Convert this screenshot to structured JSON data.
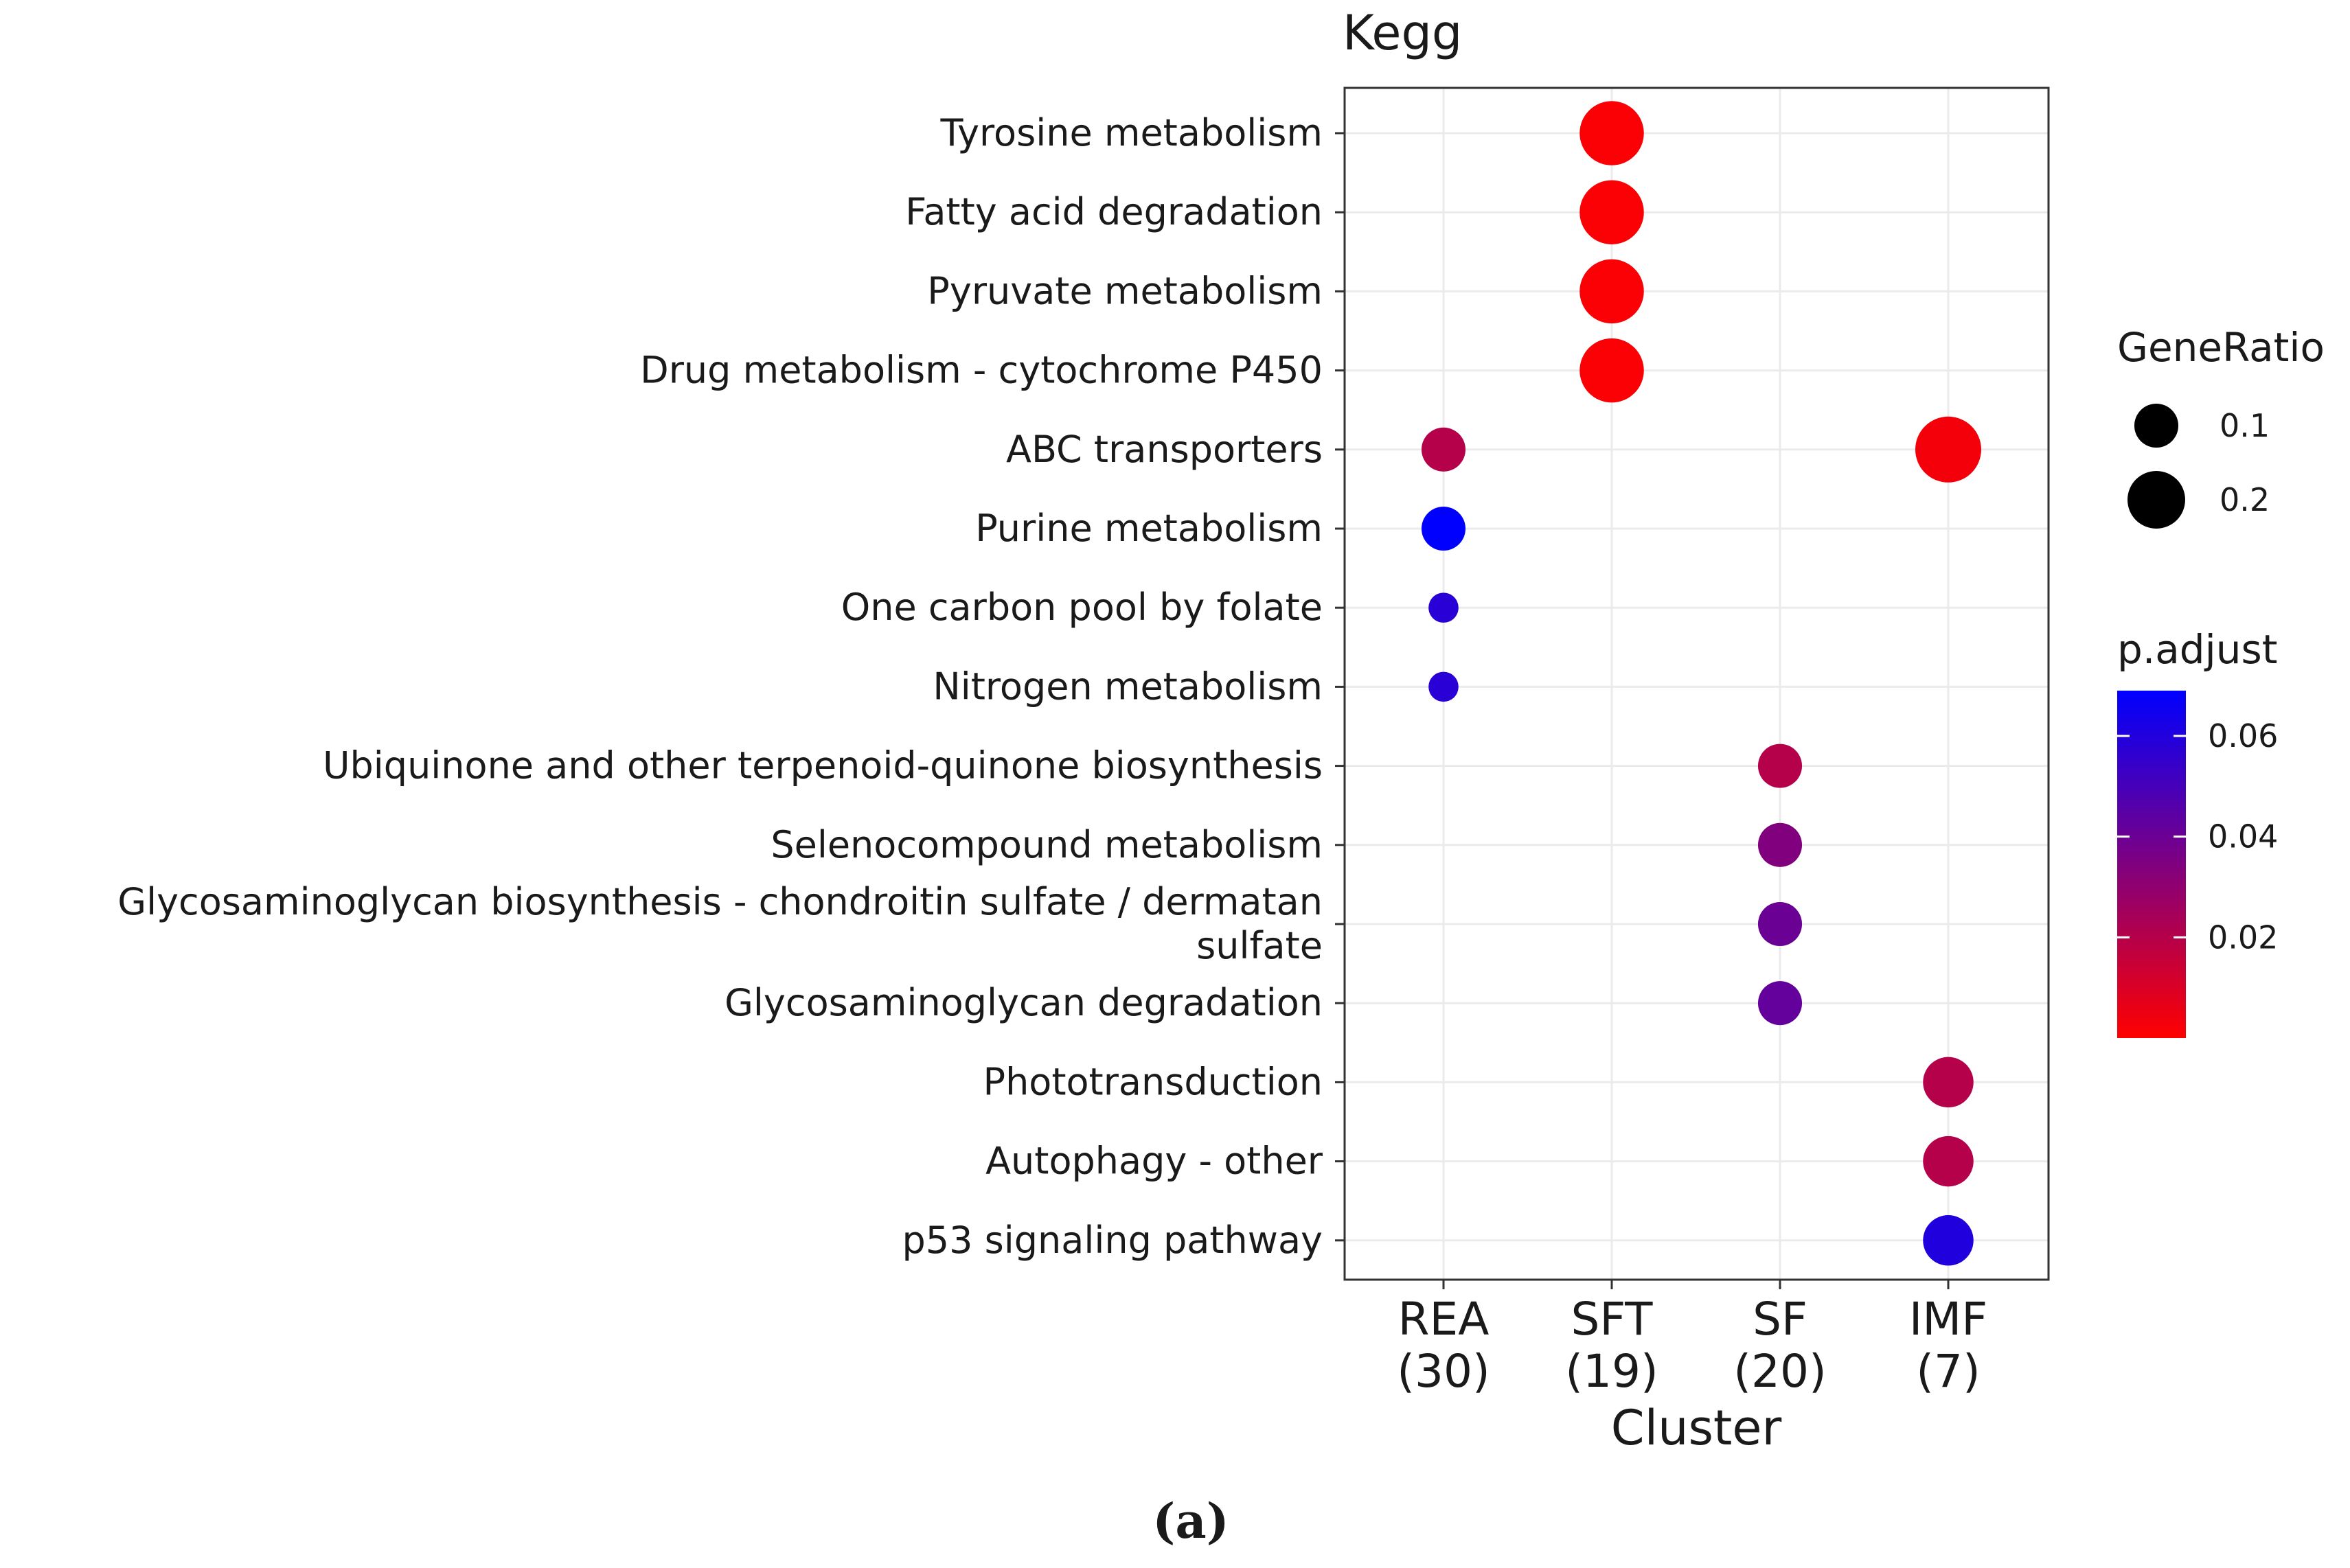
{
  "chart_data": {
    "type": "scatter",
    "title": "Kegg",
    "xlabel": "Cluster",
    "ylabel": "",
    "categories_x": [
      {
        "name": "REA",
        "count": "(30)"
      },
      {
        "name": "SFT",
        "count": "(19)"
      },
      {
        "name": "SF",
        "count": "(20)"
      },
      {
        "name": "IMF",
        "count": "(7)"
      }
    ],
    "categories_y": [
      {
        "lines": [
          "Tyrosine metabolism"
        ]
      },
      {
        "lines": [
          "Fatty acid degradation"
        ]
      },
      {
        "lines": [
          "Pyruvate metabolism"
        ]
      },
      {
        "lines": [
          "Drug metabolism - cytochrome P450"
        ]
      },
      {
        "lines": [
          "ABC transporters"
        ]
      },
      {
        "lines": [
          "Purine metabolism"
        ]
      },
      {
        "lines": [
          "One carbon pool by folate"
        ]
      },
      {
        "lines": [
          "Nitrogen metabolism"
        ]
      },
      {
        "lines": [
          "Ubiquinone and other terpenoid-quinone biosynthesis"
        ]
      },
      {
        "lines": [
          "Selenocompound metabolism"
        ]
      },
      {
        "lines": [
          "Glycosaminoglycan biosynthesis - chondroitin sulfate / dermatan",
          "sulfate"
        ]
      },
      {
        "lines": [
          "Glycosaminoglycan degradation"
        ]
      },
      {
        "lines": [
          "Phototransduction"
        ]
      },
      {
        "lines": [
          "Autophagy - other"
        ]
      },
      {
        "lines": [
          "p53 signaling pathway"
        ]
      }
    ],
    "points": [
      {
        "x": "SFT",
        "y": 0,
        "gene_ratio": 0.26,
        "p_adjust": 0.001
      },
      {
        "x": "SFT",
        "y": 1,
        "gene_ratio": 0.26,
        "p_adjust": 0.001
      },
      {
        "x": "SFT",
        "y": 2,
        "gene_ratio": 0.26,
        "p_adjust": 0.001
      },
      {
        "x": "SFT",
        "y": 3,
        "gene_ratio": 0.26,
        "p_adjust": 0.001
      },
      {
        "x": "REA",
        "y": 4,
        "gene_ratio": 0.1,
        "p_adjust": 0.02
      },
      {
        "x": "IMF",
        "y": 4,
        "gene_ratio": 0.29,
        "p_adjust": 0.003
      },
      {
        "x": "REA",
        "y": 5,
        "gene_ratio": 0.1,
        "p_adjust": 0.069
      },
      {
        "x": "REA",
        "y": 6,
        "gene_ratio": 0.033,
        "p_adjust": 0.058
      },
      {
        "x": "REA",
        "y": 7,
        "gene_ratio": 0.033,
        "p_adjust": 0.058
      },
      {
        "x": "SF",
        "y": 8,
        "gene_ratio": 0.1,
        "p_adjust": 0.02
      },
      {
        "x": "SF",
        "y": 9,
        "gene_ratio": 0.1,
        "p_adjust": 0.034
      },
      {
        "x": "SF",
        "y": 10,
        "gene_ratio": 0.1,
        "p_adjust": 0.04
      },
      {
        "x": "SF",
        "y": 11,
        "gene_ratio": 0.1,
        "p_adjust": 0.042
      },
      {
        "x": "IMF",
        "y": 12,
        "gene_ratio": 0.143,
        "p_adjust": 0.02
      },
      {
        "x": "IMF",
        "y": 13,
        "gene_ratio": 0.143,
        "p_adjust": 0.02
      },
      {
        "x": "IMF",
        "y": 14,
        "gene_ratio": 0.143,
        "p_adjust": 0.06
      }
    ],
    "size_legend": {
      "title": "GeneRatio",
      "breaks": [
        0.1,
        0.2
      ],
      "labels": [
        "0.1",
        "0.2"
      ]
    },
    "color_legend": {
      "title": "p.adjust",
      "range": [
        0.0,
        0.069
      ],
      "breaks": [
        0.06,
        0.04,
        0.02
      ],
      "labels": [
        "0.06",
        "0.04",
        "0.02"
      ],
      "low_color": "#ff0000",
      "high_color": "#0000ff"
    },
    "grid": true,
    "legend_position": "right"
  },
  "caption": {
    "open": "(",
    "letter": "a",
    "close": ")"
  }
}
